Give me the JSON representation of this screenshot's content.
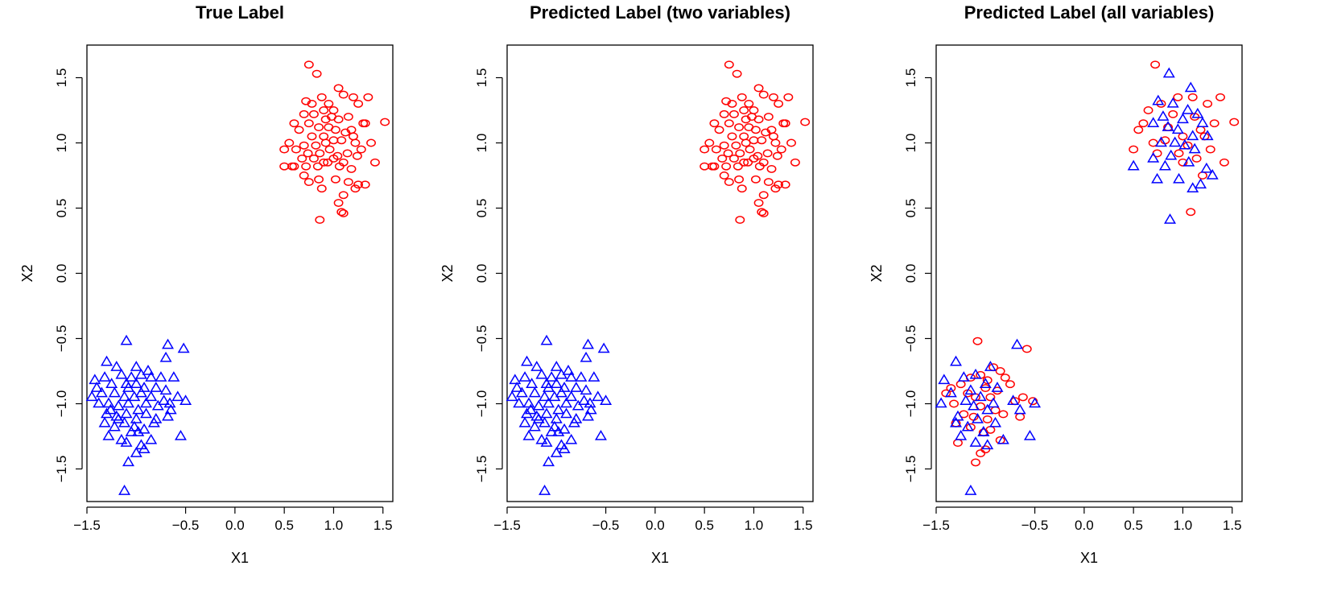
{
  "chart_data": [
    {
      "type": "scatter",
      "title": "True Label",
      "xlabel": "X1",
      "ylabel": "X2",
      "xlim": [
        -1.5,
        1.6
      ],
      "ylim": [
        -1.75,
        1.75
      ],
      "x_ticks": [
        "-1.5",
        "-0.5",
        "0.0",
        "0.5",
        "1.0",
        "1.5"
      ],
      "y_ticks": [
        "-1.5",
        "-1.0",
        "-0.5",
        "0.0",
        "0.5",
        "1.0",
        "1.5"
      ],
      "grid": false,
      "series": [
        {
          "marker": "circle",
          "color": "#ff0000",
          "x": [
            0.75,
            0.83,
            0.72,
            0.78,
            0.88,
            0.95,
            1.05,
            1.1,
            1.2,
            1.25,
            1.35,
            0.7,
            0.8,
            0.9,
            1.0,
            1.15,
            1.3,
            0.6,
            0.75,
            0.85,
            0.95,
            1.05,
            1.18,
            0.65,
            0.78,
            0.9,
            1.02,
            1.12,
            1.2,
            1.32,
            0.55,
            0.7,
            0.82,
            0.92,
            1.0,
            1.08,
            1.22,
            1.38,
            0.5,
            0.62,
            0.74,
            0.86,
            0.96,
            1.04,
            1.14,
            1.28,
            0.68,
            0.8,
            0.9,
            1.0,
            1.1,
            1.24,
            0.58,
            0.72,
            0.84,
            0.94,
            1.06,
            1.18,
            0.5,
            0.6,
            0.7,
            0.85,
            1.02,
            1.15,
            1.25,
            1.42,
            0.75,
            0.88,
            1.1,
            1.22,
            1.32,
            1.05,
            1.1,
            1.08,
            0.86,
            1.52,
            0.98,
            0.92
          ],
          "y": [
            1.6,
            1.53,
            1.32,
            1.3,
            1.35,
            1.3,
            1.42,
            1.37,
            1.35,
            1.3,
            1.35,
            1.22,
            1.22,
            1.25,
            1.25,
            1.2,
            1.15,
            1.15,
            1.15,
            1.12,
            1.12,
            1.18,
            1.1,
            1.1,
            1.05,
            1.05,
            1.1,
            1.08,
            1.05,
            1.15,
            1.0,
            0.98,
            0.98,
            1.0,
            1.02,
            1.02,
            1.0,
            1.0,
            0.95,
            0.95,
            0.92,
            0.92,
            0.95,
            0.9,
            0.92,
            0.95,
            0.88,
            0.88,
            0.85,
            0.88,
            0.85,
            0.9,
            0.82,
            0.82,
            0.82,
            0.85,
            0.82,
            0.8,
            0.82,
            0.82,
            0.75,
            0.72,
            0.72,
            0.7,
            0.68,
            0.85,
            0.7,
            0.65,
            0.6,
            0.65,
            0.68,
            0.54,
            0.46,
            0.47,
            0.41,
            1.16,
            1.2,
            1.18
          ]
        },
        {
          "marker": "triangle",
          "color": "#0000ff",
          "x": [
            -1.1,
            -0.68,
            -0.52,
            -1.3,
            -1.2,
            -1.0,
            -0.88,
            -0.7,
            -1.42,
            -1.32,
            -1.15,
            -1.05,
            -0.95,
            -0.85,
            -0.75,
            -0.62,
            -1.4,
            -1.25,
            -1.1,
            -1.0,
            -0.92,
            -0.8,
            -0.7,
            -0.5,
            -1.45,
            -1.35,
            -1.22,
            -1.12,
            -1.02,
            -0.95,
            -0.85,
            -0.72,
            -0.58,
            -1.38,
            -1.28,
            -1.18,
            -1.08,
            -0.98,
            -0.9,
            -0.78,
            -0.66,
            -1.3,
            -1.2,
            -1.1,
            -1.0,
            -0.9,
            -0.8,
            -0.68,
            -1.32,
            -1.22,
            -1.12,
            -1.02,
            -0.92,
            -0.82,
            -0.55,
            -1.28,
            -1.15,
            -1.05,
            -0.95,
            -0.85,
            -1.1,
            -1.0,
            -0.92,
            -1.08,
            -1.12,
            -0.65,
            -0.98,
            -1.18,
            -1.26,
            -1.08
          ],
          "y": [
            -0.52,
            -0.55,
            -0.58,
            -0.68,
            -0.72,
            -0.72,
            -0.75,
            -0.65,
            -0.82,
            -0.8,
            -0.78,
            -0.8,
            -0.78,
            -0.8,
            -0.8,
            -0.8,
            -0.88,
            -0.85,
            -0.85,
            -0.85,
            -0.88,
            -0.88,
            -0.9,
            -0.98,
            -0.95,
            -0.92,
            -0.92,
            -0.95,
            -0.95,
            -0.92,
            -0.95,
            -0.98,
            -0.95,
            -1.0,
            -1.0,
            -1.02,
            -1.0,
            -1.05,
            -1.0,
            -1.02,
            -1.0,
            -1.08,
            -1.1,
            -1.08,
            -1.12,
            -1.08,
            -1.12,
            -1.1,
            -1.15,
            -1.18,
            -1.15,
            -1.18,
            -1.2,
            -1.15,
            -1.25,
            -1.25,
            -1.28,
            -1.22,
            -1.32,
            -1.28,
            -1.3,
            -1.38,
            -1.35,
            -1.45,
            -1.67,
            -1.05,
            -1.22,
            -1.12,
            -1.05,
            -0.88
          ]
        }
      ]
    },
    {
      "type": "scatter",
      "title": "Predicted Label (two variables)",
      "xlabel": "X1",
      "ylabel": "X2",
      "xlim": [
        -1.5,
        1.6
      ],
      "ylim": [
        -1.75,
        1.75
      ],
      "x_ticks": [
        "-1.5",
        "-0.5",
        "0.0",
        "0.5",
        "1.0",
        "1.5"
      ],
      "y_ticks": [
        "-1.5",
        "-1.0",
        "-0.5",
        "0.0",
        "0.5",
        "1.0",
        "1.5"
      ],
      "grid": false,
      "series": [
        {
          "marker": "circle",
          "color": "#ff0000",
          "x": [
            0.75,
            0.83,
            0.72,
            0.78,
            0.88,
            0.95,
            1.05,
            1.1,
            1.2,
            1.25,
            1.35,
            0.7,
            0.8,
            0.9,
            1.0,
            1.15,
            1.3,
            0.6,
            0.75,
            0.85,
            0.95,
            1.05,
            1.18,
            0.65,
            0.78,
            0.9,
            1.02,
            1.12,
            1.2,
            1.32,
            0.55,
            0.7,
            0.82,
            0.92,
            1.0,
            1.08,
            1.22,
            1.38,
            0.5,
            0.62,
            0.74,
            0.86,
            0.96,
            1.04,
            1.14,
            1.28,
            0.68,
            0.8,
            0.9,
            1.0,
            1.1,
            1.24,
            0.58,
            0.72,
            0.84,
            0.94,
            1.06,
            1.18,
            0.5,
            0.6,
            0.7,
            0.85,
            1.02,
            1.15,
            1.25,
            1.42,
            0.75,
            0.88,
            1.1,
            1.22,
            1.32,
            1.05,
            1.1,
            1.08,
            0.86,
            1.52,
            0.98,
            0.92
          ],
          "y": [
            1.6,
            1.53,
            1.32,
            1.3,
            1.35,
            1.3,
            1.42,
            1.37,
            1.35,
            1.3,
            1.35,
            1.22,
            1.22,
            1.25,
            1.25,
            1.2,
            1.15,
            1.15,
            1.15,
            1.12,
            1.12,
            1.18,
            1.1,
            1.1,
            1.05,
            1.05,
            1.1,
            1.08,
            1.05,
            1.15,
            1.0,
            0.98,
            0.98,
            1.0,
            1.02,
            1.02,
            1.0,
            1.0,
            0.95,
            0.95,
            0.92,
            0.92,
            0.95,
            0.9,
            0.92,
            0.95,
            0.88,
            0.88,
            0.85,
            0.88,
            0.85,
            0.9,
            0.82,
            0.82,
            0.82,
            0.85,
            0.82,
            0.8,
            0.82,
            0.82,
            0.75,
            0.72,
            0.72,
            0.7,
            0.68,
            0.85,
            0.7,
            0.65,
            0.6,
            0.65,
            0.68,
            0.54,
            0.46,
            0.47,
            0.41,
            1.16,
            1.2,
            1.18
          ]
        },
        {
          "marker": "triangle",
          "color": "#0000ff",
          "x": [
            -1.1,
            -0.68,
            -0.52,
            -1.3,
            -1.2,
            -1.0,
            -0.88,
            -0.7,
            -1.42,
            -1.32,
            -1.15,
            -1.05,
            -0.95,
            -0.85,
            -0.75,
            -0.62,
            -1.4,
            -1.25,
            -1.1,
            -1.0,
            -0.92,
            -0.8,
            -0.7,
            -0.5,
            -1.45,
            -1.35,
            -1.22,
            -1.12,
            -1.02,
            -0.95,
            -0.85,
            -0.72,
            -0.58,
            -1.38,
            -1.28,
            -1.18,
            -1.08,
            -0.98,
            -0.9,
            -0.78,
            -0.66,
            -1.3,
            -1.2,
            -1.1,
            -1.0,
            -0.9,
            -0.8,
            -0.68,
            -1.32,
            -1.22,
            -1.12,
            -1.02,
            -0.92,
            -0.82,
            -0.55,
            -1.28,
            -1.15,
            -1.05,
            -0.95,
            -0.85,
            -1.1,
            -1.0,
            -0.92,
            -1.08,
            -1.12,
            -0.65,
            -0.98,
            -1.18,
            -1.26,
            -1.08
          ],
          "y": [
            -0.52,
            -0.55,
            -0.58,
            -0.68,
            -0.72,
            -0.72,
            -0.75,
            -0.65,
            -0.82,
            -0.8,
            -0.78,
            -0.8,
            -0.78,
            -0.8,
            -0.8,
            -0.8,
            -0.88,
            -0.85,
            -0.85,
            -0.85,
            -0.88,
            -0.88,
            -0.9,
            -0.98,
            -0.95,
            -0.92,
            -0.92,
            -0.95,
            -0.95,
            -0.92,
            -0.95,
            -0.98,
            -0.95,
            -1.0,
            -1.0,
            -1.02,
            -1.0,
            -1.05,
            -1.0,
            -1.02,
            -1.0,
            -1.08,
            -1.1,
            -1.08,
            -1.12,
            -1.08,
            -1.12,
            -1.1,
            -1.15,
            -1.18,
            -1.15,
            -1.18,
            -1.2,
            -1.15,
            -1.25,
            -1.25,
            -1.28,
            -1.22,
            -1.32,
            -1.28,
            -1.3,
            -1.38,
            -1.35,
            -1.45,
            -1.67,
            -1.05,
            -1.22,
            -1.12,
            -1.05,
            -0.88
          ]
        }
      ]
    },
    {
      "type": "scatter",
      "title": "Predicted Label (all variables)",
      "xlabel": "X1",
      "ylabel": "X2",
      "xlim": [
        -1.5,
        1.6
      ],
      "ylim": [
        -1.75,
        1.75
      ],
      "x_ticks": [
        "-1.5",
        "-0.5",
        "0.0",
        "0.5",
        "1.0",
        "1.5"
      ],
      "y_ticks": [
        "-1.5",
        "-1.0",
        "-0.5",
        "0.0",
        "0.5",
        "1.0",
        "1.5"
      ],
      "grid": false,
      "series": [
        {
          "marker": "circle",
          "color": "#ff0000",
          "x": [
            0.72,
            0.78,
            0.95,
            1.1,
            1.25,
            1.38,
            0.65,
            0.9,
            1.12,
            1.32,
            0.6,
            0.85,
            1.18,
            0.55,
            1.0,
            1.22,
            1.52,
            0.7,
            0.82,
            1.05,
            1.28,
            0.5,
            0.74,
            0.96,
            1.14,
            1.42,
            1.0,
            1.2,
            1.08,
            -1.08,
            -0.92,
            -0.85,
            -1.15,
            -1.05,
            -0.98,
            -0.8,
            -0.75,
            -1.35,
            -1.25,
            -1.0,
            -0.88,
            -0.62,
            -1.4,
            -1.18,
            -1.1,
            -0.95,
            -0.7,
            -0.52,
            -1.32,
            -1.05,
            -0.9,
            -1.22,
            -1.12,
            -0.98,
            -0.82,
            -1.3,
            -1.15,
            -1.02,
            -0.95,
            -0.85,
            -1.28,
            -1.0,
            -1.05,
            -1.1,
            -0.65,
            -0.58
          ],
          "y": [
            1.6,
            1.3,
            1.35,
            1.35,
            1.3,
            1.35,
            1.25,
            1.22,
            1.2,
            1.15,
            1.15,
            1.12,
            1.1,
            1.1,
            1.05,
            1.05,
            1.16,
            1.0,
            1.02,
            0.98,
            0.95,
            0.95,
            0.92,
            0.92,
            0.88,
            0.85,
            0.85,
            0.75,
            0.47,
            -0.52,
            -0.72,
            -0.75,
            -0.8,
            -0.78,
            -0.82,
            -0.8,
            -0.85,
            -0.88,
            -0.85,
            -0.88,
            -0.9,
            -0.95,
            -0.92,
            -0.92,
            -0.95,
            -0.95,
            -0.98,
            -0.98,
            -1.0,
            -1.02,
            -1.05,
            -1.08,
            -1.1,
            -1.12,
            -1.08,
            -1.15,
            -1.18,
            -1.22,
            -1.2,
            -1.28,
            -1.3,
            -1.35,
            -1.38,
            -1.45,
            -1.1,
            -0.58
          ]
        },
        {
          "marker": "triangle",
          "color": "#0000ff",
          "x": [
            0.86,
            1.08,
            0.75,
            0.9,
            1.05,
            1.15,
            0.8,
            1.0,
            1.2,
            0.7,
            0.85,
            0.95,
            1.1,
            1.25,
            0.78,
            0.92,
            1.02,
            1.12,
            0.5,
            0.7,
            0.88,
            1.06,
            1.24,
            0.82,
            1.3,
            1.1,
            0.74,
            0.96,
            1.18,
            0.87,
            -0.68,
            -0.95,
            -1.1,
            -1.22,
            -1.3,
            -1.42,
            -1.0,
            -0.88,
            -1.15,
            -1.05,
            -1.35,
            -1.2,
            -0.92,
            -1.45,
            -1.12,
            -0.98,
            -0.72,
            -1.28,
            -1.08,
            -0.9,
            -1.18,
            -1.02,
            -0.55,
            -1.25,
            -0.5,
            -0.65,
            -1.1,
            -0.82,
            -1.3,
            -1.15,
            -0.98,
            -1.02
          ],
          "y": [
            1.53,
            1.42,
            1.32,
            1.3,
            1.25,
            1.22,
            1.2,
            1.18,
            1.15,
            1.15,
            1.12,
            1.1,
            1.05,
            1.05,
            1.0,
            1.0,
            0.98,
            0.95,
            0.82,
            0.88,
            0.9,
            0.85,
            0.8,
            0.82,
            0.75,
            0.65,
            0.72,
            0.72,
            0.68,
            0.41,
            -0.55,
            -0.72,
            -0.78,
            -0.8,
            -0.68,
            -0.82,
            -0.85,
            -0.88,
            -0.9,
            -0.95,
            -0.92,
            -0.98,
            -1.0,
            -1.0,
            -1.02,
            -1.05,
            -0.98,
            -1.1,
            -1.12,
            -1.15,
            -1.18,
            -1.22,
            -1.25,
            -1.25,
            -1.0,
            -1.05,
            -1.3,
            -1.28,
            -1.15,
            -1.67,
            -1.32,
            -1.22
          ]
        }
      ]
    }
  ]
}
